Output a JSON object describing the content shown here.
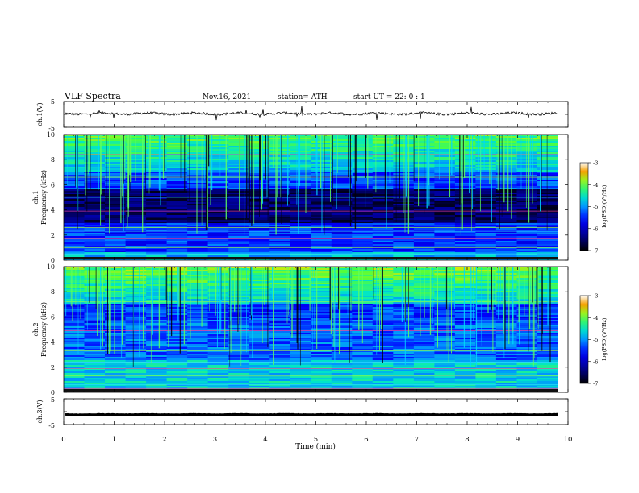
{
  "header": {
    "title": "VLF  Spectra",
    "date": "Nov.16, 2021",
    "station": "station= ATH",
    "start": "start  UT  =    22: 0   : 1"
  },
  "chart_data": [
    {
      "type": "line",
      "ylabel": "ch.1(V)",
      "ylim": [
        -5,
        5
      ],
      "yticks": [
        "5",
        "-5"
      ],
      "xlim": [
        0,
        10
      ],
      "x_end": 9.8,
      "baseline": 0.3,
      "color": "#000000"
    },
    {
      "type": "heatmap",
      "ylabel_top": "ch.1",
      "ylabel": "Frequency  (kHz)",
      "ylim": [
        0,
        10
      ],
      "yticks": [
        "0",
        "2",
        "4",
        "6",
        "8",
        "10"
      ],
      "xlim": [
        0,
        10
      ],
      "x_end": 9.8,
      "colorbar": {
        "label": "log(PSD)(V²/Hz)",
        "range": [
          -7,
          -3
        ],
        "ticks": [
          "-3",
          "-4",
          "-5",
          "-6",
          "-7"
        ]
      }
    },
    {
      "type": "heatmap",
      "ylabel_top": "ch.2",
      "ylabel": "Frequency  (kHz)",
      "ylim": [
        0,
        10
      ],
      "yticks": [
        "0",
        "2",
        "4",
        "6",
        "8",
        "10"
      ],
      "xlim": [
        0,
        10
      ],
      "x_end": 9.8,
      "colorbar": {
        "label": "log(PSD)(V²/Hz)",
        "range": [
          -7,
          -3
        ],
        "ticks": [
          "-3",
          "-4",
          "-5",
          "-6",
          "-7"
        ]
      }
    },
    {
      "type": "line",
      "ylabel": "ch.3(V)",
      "ylim": [
        -5,
        5
      ],
      "yticks": [
        "5",
        "-5"
      ],
      "xlim": [
        0,
        10
      ],
      "x_end": 9.8,
      "baseline": -1.2,
      "color": "#000000",
      "xlabel": "Time  (min)",
      "xticks": [
        "0",
        "1",
        "2",
        "3",
        "4",
        "5",
        "6",
        "7",
        "8",
        "9",
        "10"
      ]
    }
  ]
}
